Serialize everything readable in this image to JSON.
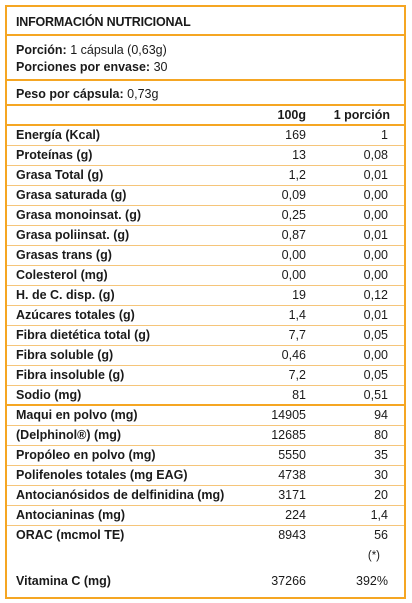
{
  "title": "INFORMACIÓN NUTRICIONAL",
  "serving": {
    "porcion_label": "Porción:",
    "porcion_value": "1 cápsula (0,63g)",
    "envase_label": "Porciones por envase:",
    "envase_value": "30"
  },
  "peso": {
    "label": "Peso por cápsula:",
    "value": "0,73g"
  },
  "columns": {
    "c100": "100g",
    "porcion": "1 porción"
  },
  "nutrients": [
    {
      "name": "Energía (Kcal)",
      "v100": "169",
      "vpor": "1"
    },
    {
      "name": "Proteínas (g)",
      "v100": "13",
      "vpor": "0,08"
    },
    {
      "name": "Grasa Total (g)",
      "v100": "1,2",
      "vpor": "0,01"
    },
    {
      "name": "Grasa saturada (g)",
      "v100": "0,09",
      "vpor": "0,00"
    },
    {
      "name": "Grasa monoinsat. (g)",
      "v100": "0,25",
      "vpor": "0,00"
    },
    {
      "name": "Grasa poliinsat. (g)",
      "v100": "0,87",
      "vpor": "0,01"
    },
    {
      "name": "Grasas trans (g)",
      "v100": "0,00",
      "vpor": "0,00"
    },
    {
      "name": "Colesterol (mg)",
      "v100": "0,00",
      "vpor": "0,00"
    },
    {
      "name": "H. de C. disp. (g)",
      "v100": "19",
      "vpor": "0,12"
    },
    {
      "name": "Azúcares totales (g)",
      "v100": "1,4",
      "vpor": "0,01"
    },
    {
      "name": "Fibra dietética total (g)",
      "v100": "7,7",
      "vpor": "0,05"
    },
    {
      "name": "Fibra soluble (g)",
      "v100": "0,46",
      "vpor": "0,00"
    },
    {
      "name": "Fibra insoluble (g)",
      "v100": "7,2",
      "vpor": "0,05"
    },
    {
      "name": "Sodio (mg)",
      "v100": "81",
      "vpor": "0,51"
    }
  ],
  "actives": [
    {
      "name": "Maqui en polvo (mg)",
      "v100": "14905",
      "vpor": "94"
    },
    {
      "name": "(Delphinol®) (mg)",
      "v100": "12685",
      "vpor": "80"
    },
    {
      "name": "Propóleo en polvo (mg)",
      "v100": "5550",
      "vpor": "35"
    },
    {
      "name": "Polifenoles totales (mg EAG)",
      "v100": "4738",
      "vpor": "30"
    },
    {
      "name": "Antocianósidos de delfinidina (mg)",
      "v100": "3171",
      "vpor": "20"
    },
    {
      "name": "Antocianinas (mg)",
      "v100": "224",
      "vpor": "1,4"
    },
    {
      "name": "ORAC (mcmol TE)",
      "v100": "8943",
      "vpor": "56"
    }
  ],
  "note": "(*)",
  "vitamin": {
    "name": "Vitamina C (mg)",
    "v100": "37266",
    "vpor": "392%"
  }
}
